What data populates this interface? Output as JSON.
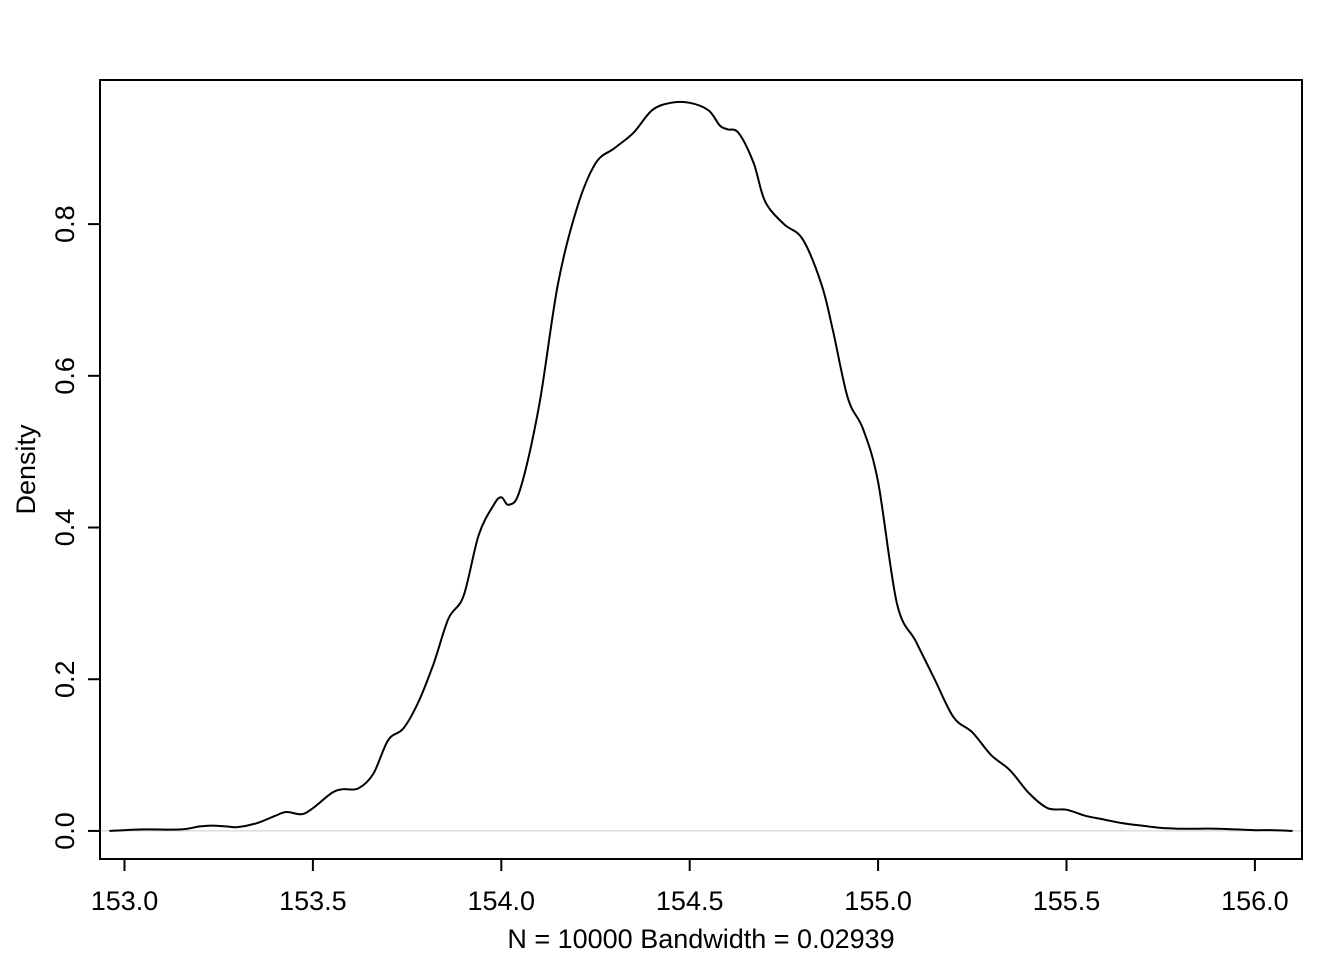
{
  "chart_data": {
    "type": "line",
    "title": "",
    "xlabel": "N = 10000   Bandwidth = 0.02939",
    "ylabel": "Density",
    "xlim": [
      152.935,
      156.125
    ],
    "ylim": [
      -0.037,
      0.99
    ],
    "x_ticks": [
      153.0,
      153.5,
      154.0,
      154.5,
      155.0,
      155.5,
      156.0
    ],
    "x_tick_labels": [
      "153.0",
      "153.5",
      "154.0",
      "154.5",
      "155.0",
      "155.5",
      "156.0"
    ],
    "y_ticks": [
      0.0,
      0.2,
      0.4,
      0.6,
      0.8
    ],
    "y_tick_labels": [
      "0.0",
      "0.2",
      "0.4",
      "0.6",
      "0.8"
    ],
    "grid": false,
    "baseline": 0,
    "colors": {
      "line": "#000000",
      "baseline": "#cccccc",
      "frame": "#000000"
    },
    "series": [
      {
        "x": [
          152.96,
          153.05,
          153.15,
          153.2,
          153.23,
          153.27,
          153.3,
          153.35,
          153.4,
          153.43,
          153.47,
          153.5,
          153.55,
          153.58,
          153.62,
          153.66,
          153.7,
          153.74,
          153.78,
          153.82,
          153.86,
          153.9,
          153.94,
          153.98,
          154.0,
          154.02,
          154.05,
          154.1,
          154.15,
          154.2,
          154.25,
          154.3,
          154.35,
          154.4,
          154.45,
          154.5,
          154.55,
          154.58,
          154.6,
          154.63,
          154.67,
          154.7,
          154.75,
          154.8,
          154.85,
          154.88,
          154.92,
          154.96,
          155.0,
          155.05,
          155.1,
          155.15,
          155.2,
          155.25,
          155.3,
          155.35,
          155.4,
          155.45,
          155.5,
          155.55,
          155.6,
          155.65,
          155.7,
          155.75,
          155.8,
          155.85,
          155.9,
          155.95,
          156.0,
          156.05,
          156.1
        ],
        "y": [
          0.0,
          0.002,
          0.002,
          0.006,
          0.007,
          0.006,
          0.005,
          0.01,
          0.02,
          0.025,
          0.022,
          0.03,
          0.05,
          0.055,
          0.056,
          0.075,
          0.12,
          0.135,
          0.17,
          0.22,
          0.28,
          0.31,
          0.39,
          0.43,
          0.44,
          0.43,
          0.45,
          0.56,
          0.72,
          0.82,
          0.88,
          0.9,
          0.92,
          0.95,
          0.96,
          0.96,
          0.95,
          0.93,
          0.925,
          0.92,
          0.88,
          0.83,
          0.8,
          0.78,
          0.72,
          0.66,
          0.57,
          0.53,
          0.46,
          0.3,
          0.25,
          0.2,
          0.15,
          0.13,
          0.1,
          0.08,
          0.05,
          0.03,
          0.028,
          0.02,
          0.015,
          0.01,
          0.007,
          0.004,
          0.003,
          0.003,
          0.003,
          0.002,
          0.001,
          0.001,
          0.0
        ]
      }
    ]
  }
}
